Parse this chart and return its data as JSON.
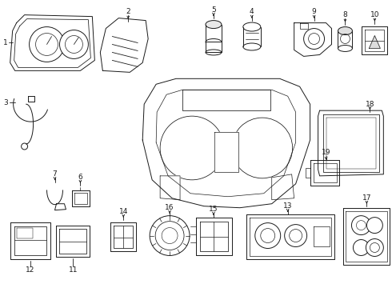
{
  "bg_color": "#ffffff",
  "line_color": "#1a1a1a",
  "lw": 0.7,
  "fig_width": 4.9,
  "fig_height": 3.6,
  "dpi": 100
}
